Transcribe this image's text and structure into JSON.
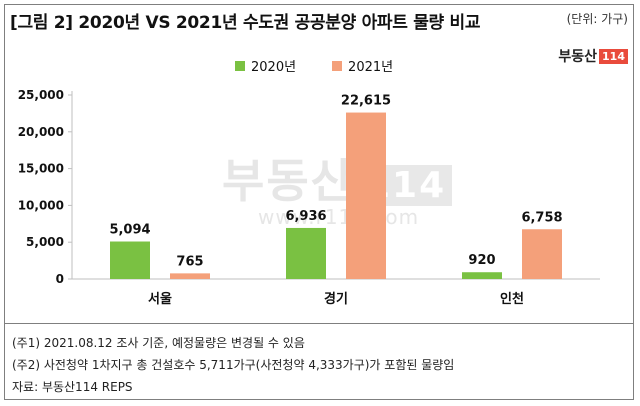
{
  "title": "[그림 2] 2020년 VS 2021년 수도권 공공분양 아파트 물량 비교",
  "unit": "(단위: 가구)",
  "logo": {
    "text": "부동산",
    "num": "114"
  },
  "watermark": {
    "text": "부동산",
    "num": "114",
    "url": "www.r114.com"
  },
  "colors": {
    "series_2020": "#7ac142",
    "series_2021": "#f4a07a",
    "axis": "#bfbfbf"
  },
  "chart_data": {
    "type": "bar",
    "categories": [
      "서울",
      "경기",
      "인천"
    ],
    "series": [
      {
        "name": "2020년",
        "values": [
          5094,
          6936,
          920
        ],
        "labels": [
          "5,094",
          "6,936",
          "920"
        ],
        "color": "#7ac142"
      },
      {
        "name": "2021년",
        "values": [
          765,
          22615,
          6758
        ],
        "labels": [
          "765",
          "22,615",
          "6,758"
        ],
        "color": "#f4a07a"
      }
    ],
    "ylim": [
      0,
      25000
    ],
    "yticks": [
      0,
      5000,
      10000,
      15000,
      20000,
      25000
    ],
    "ytick_labels": [
      "0",
      "5,000",
      "10,000",
      "15,000",
      "20,000",
      "25,000"
    ],
    "legend_position": "top-center",
    "grid": false,
    "xlabel": "",
    "ylabel": ""
  },
  "notes": [
    "(주1) 2021.08.12 조사 기준, 예정물량은 변경될 수 있음",
    "(주2) 사전청약 1차지구 총 건설호수 5,711가구(사전청약 4,333가구)가 포함된 물량임",
    "자료: 부동산114 REPS"
  ]
}
